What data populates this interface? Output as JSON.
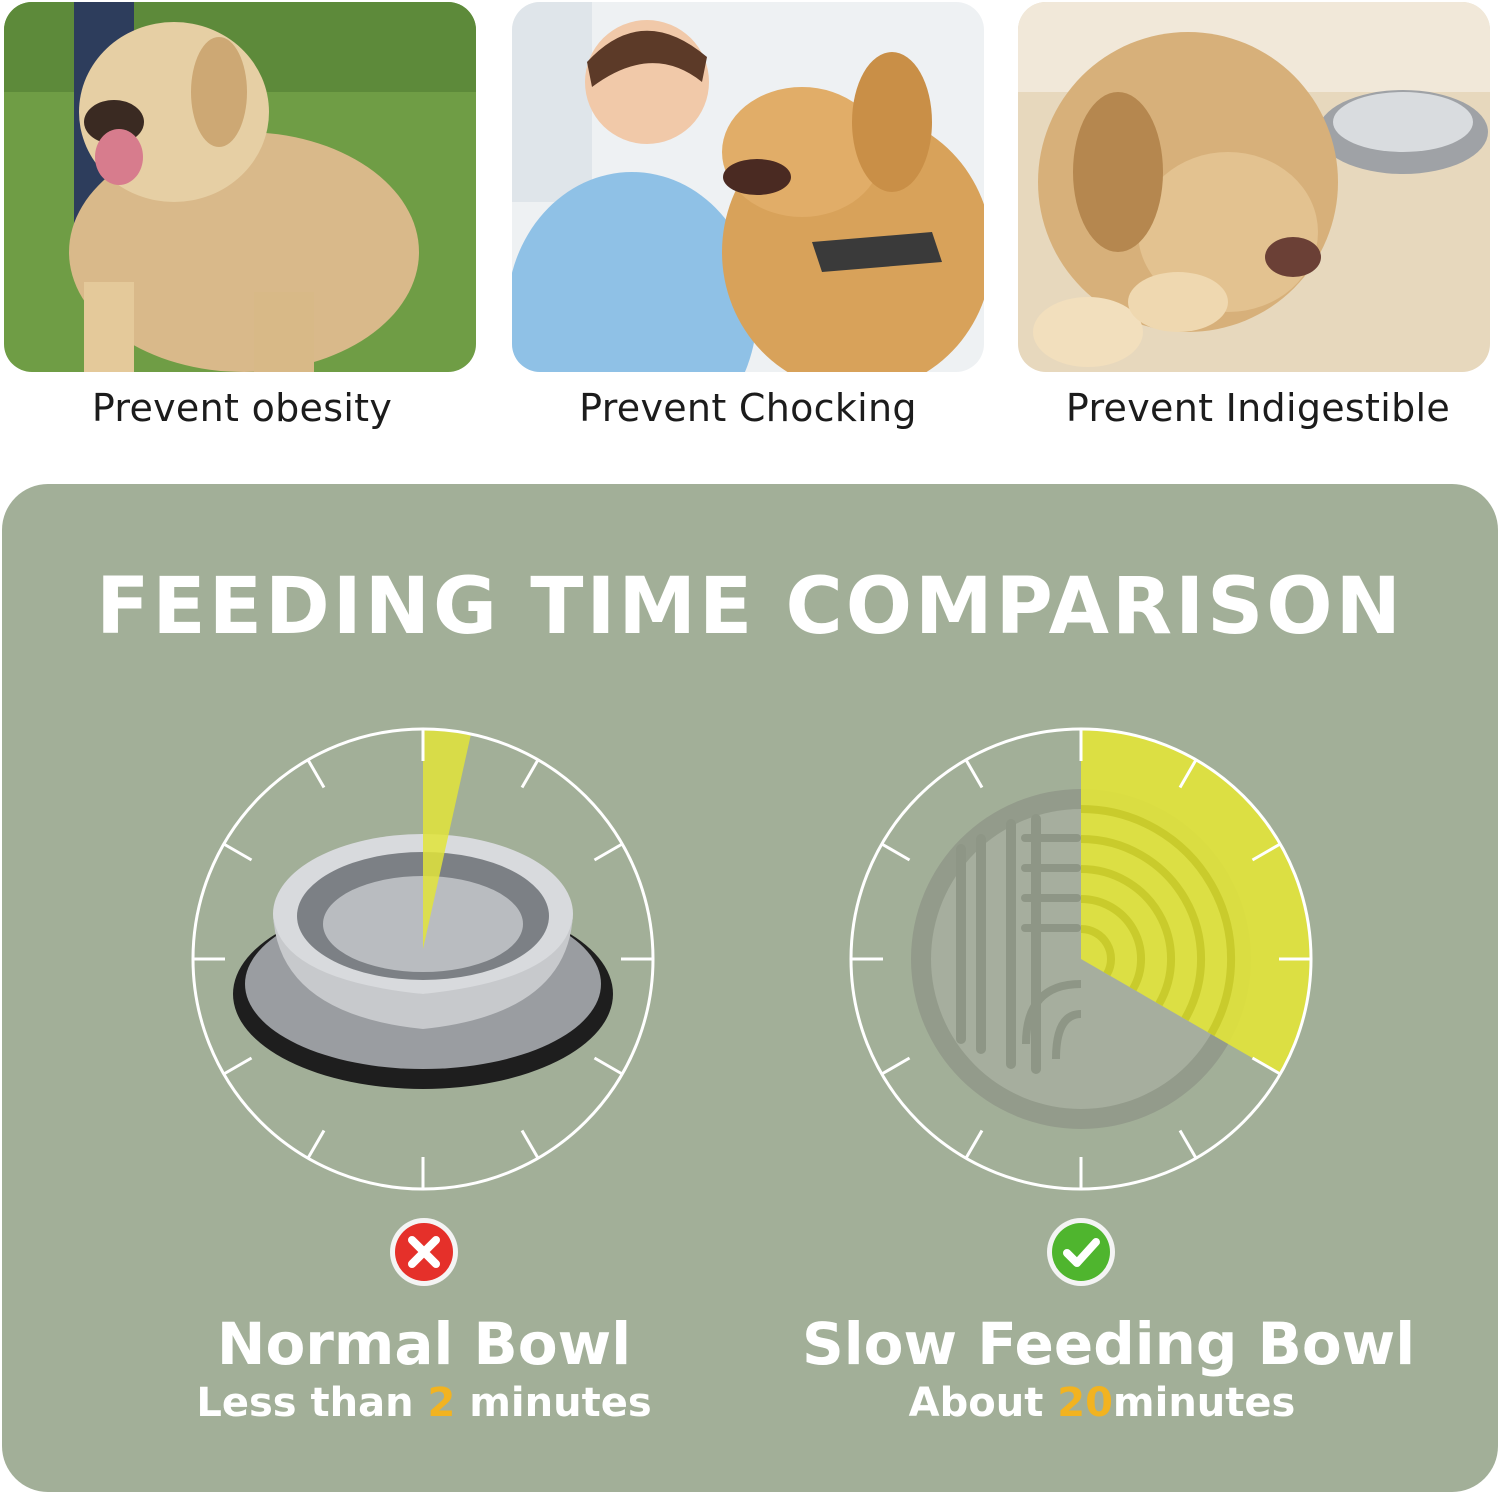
{
  "photos": [
    {
      "caption": "Prevent obesity"
    },
    {
      "caption": "Prevent Chocking"
    },
    {
      "caption": "Prevent Indigestible"
    }
  ],
  "comparison": {
    "title": "FEEDING TIME COMPARISON",
    "normal": {
      "name": "Normal Bowl",
      "time_prefix": "Less than ",
      "time_value": "2",
      "time_suffix": " minutes",
      "badge_icon": "cross-icon",
      "badge_color": "#e5302a"
    },
    "slow": {
      "name": "Slow Feeding Bowl",
      "time_prefix": "About ",
      "time_value": "20",
      "time_suffix": "minutes",
      "badge_icon": "check-icon",
      "badge_color": "#4fb52e"
    }
  },
  "colors": {
    "panel": "#a2af98",
    "highlight": "#f2b320",
    "sector": "#e2e43a"
  }
}
